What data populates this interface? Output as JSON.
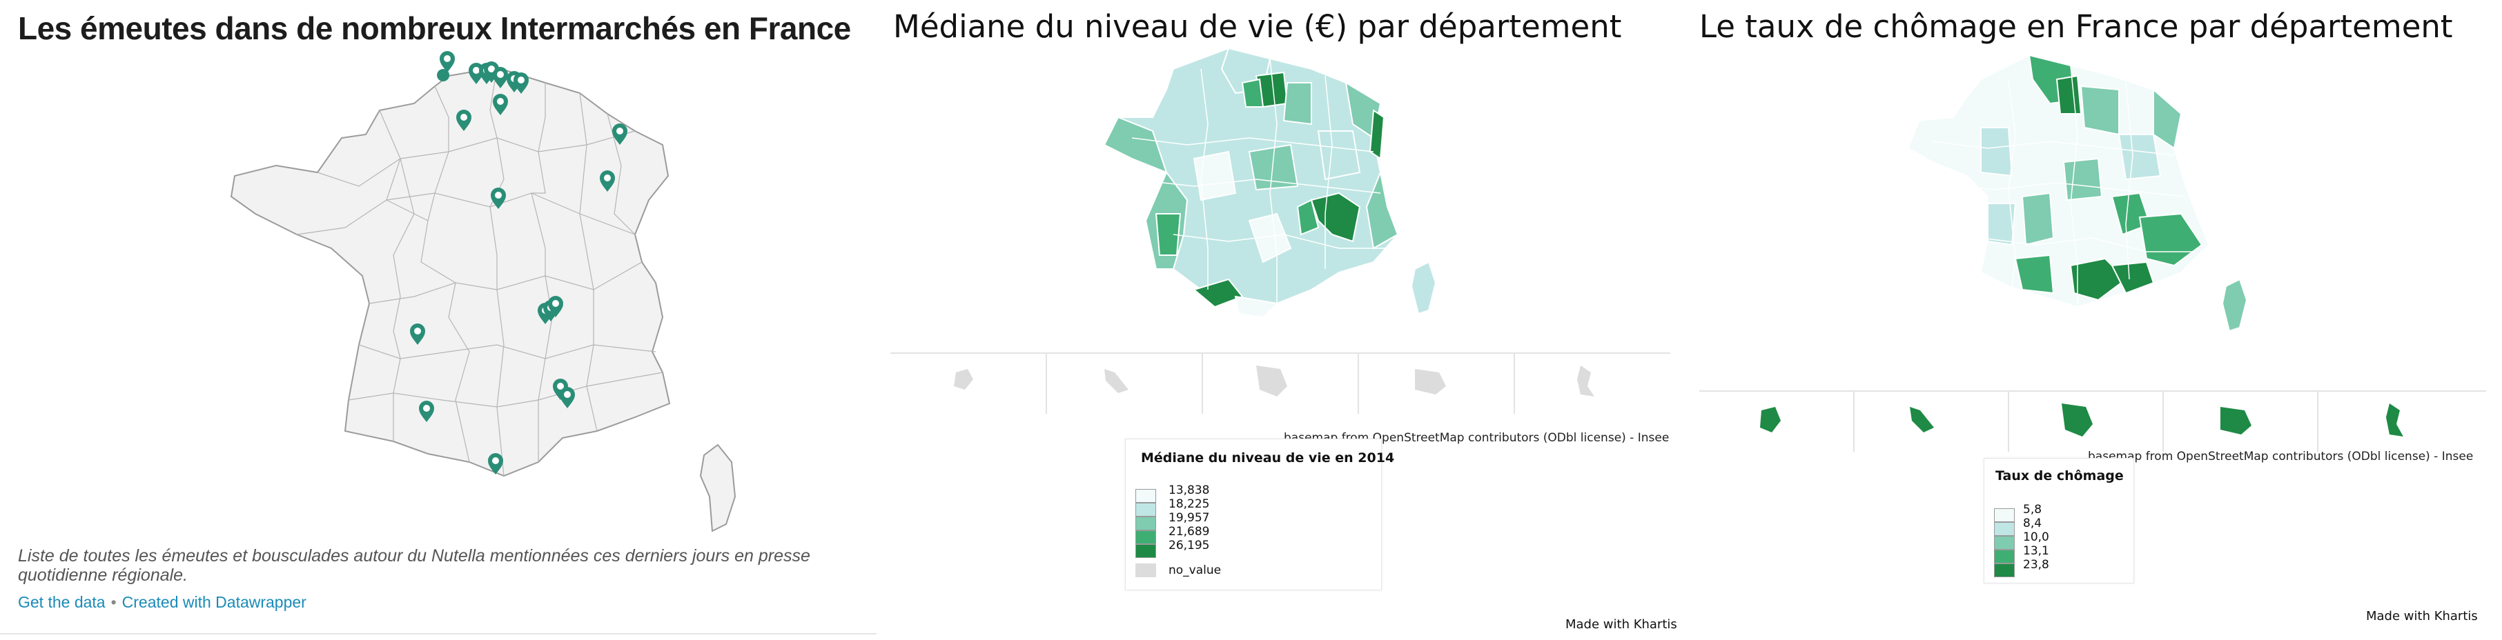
{
  "panel1": {
    "title": "Les émeutes dans de nombreux Intermarchés en France",
    "description": "Liste de toutes les émeutes et bousculades autour du Nutella mentionnées ces derniers jours en presse quotidienne régionale.",
    "link_data": "Get the data",
    "separator": "•",
    "link_credit": "Created with Datawrapper",
    "marker_color": "#2a8e77",
    "map_fill": "#f2f2f2"
  },
  "panel2": {
    "title": "Médiane du niveau de vie (€) par département",
    "source": "basemap from OpenStreetMap contributors (ODbl license) - Insee",
    "legend_title": "Médiane du niveau de vie en 2014",
    "legend": [
      {
        "label": "13,838",
        "color": "#f2fafa"
      },
      {
        "label": "18,225",
        "color": "#bfe6e4"
      },
      {
        "label": "19,957",
        "color": "#7fccb0"
      },
      {
        "label": "21,689",
        "color": "#3fae73"
      },
      {
        "label": "26,195",
        "color": "#1e8a45"
      }
    ],
    "no_value_label": "no_value",
    "no_value_color": "#dcdcdc",
    "made_with": "Made with Khartis"
  },
  "panel3": {
    "title": "Le taux de chômage en France par département",
    "source": "basemap from OpenStreetMap contributors (ODbl license) - Insee",
    "legend_title": "Taux de chômage",
    "legend": [
      {
        "label": "5,8",
        "color": "#f2fafa"
      },
      {
        "label": "8,4",
        "color": "#bfe6e4"
      },
      {
        "label": "10,0",
        "color": "#7fccb0"
      },
      {
        "label": "13,1",
        "color": "#3fae73"
      },
      {
        "label": "23,8",
        "color": "#1e8a45"
      }
    ],
    "made_with": "Made with Khartis"
  }
}
